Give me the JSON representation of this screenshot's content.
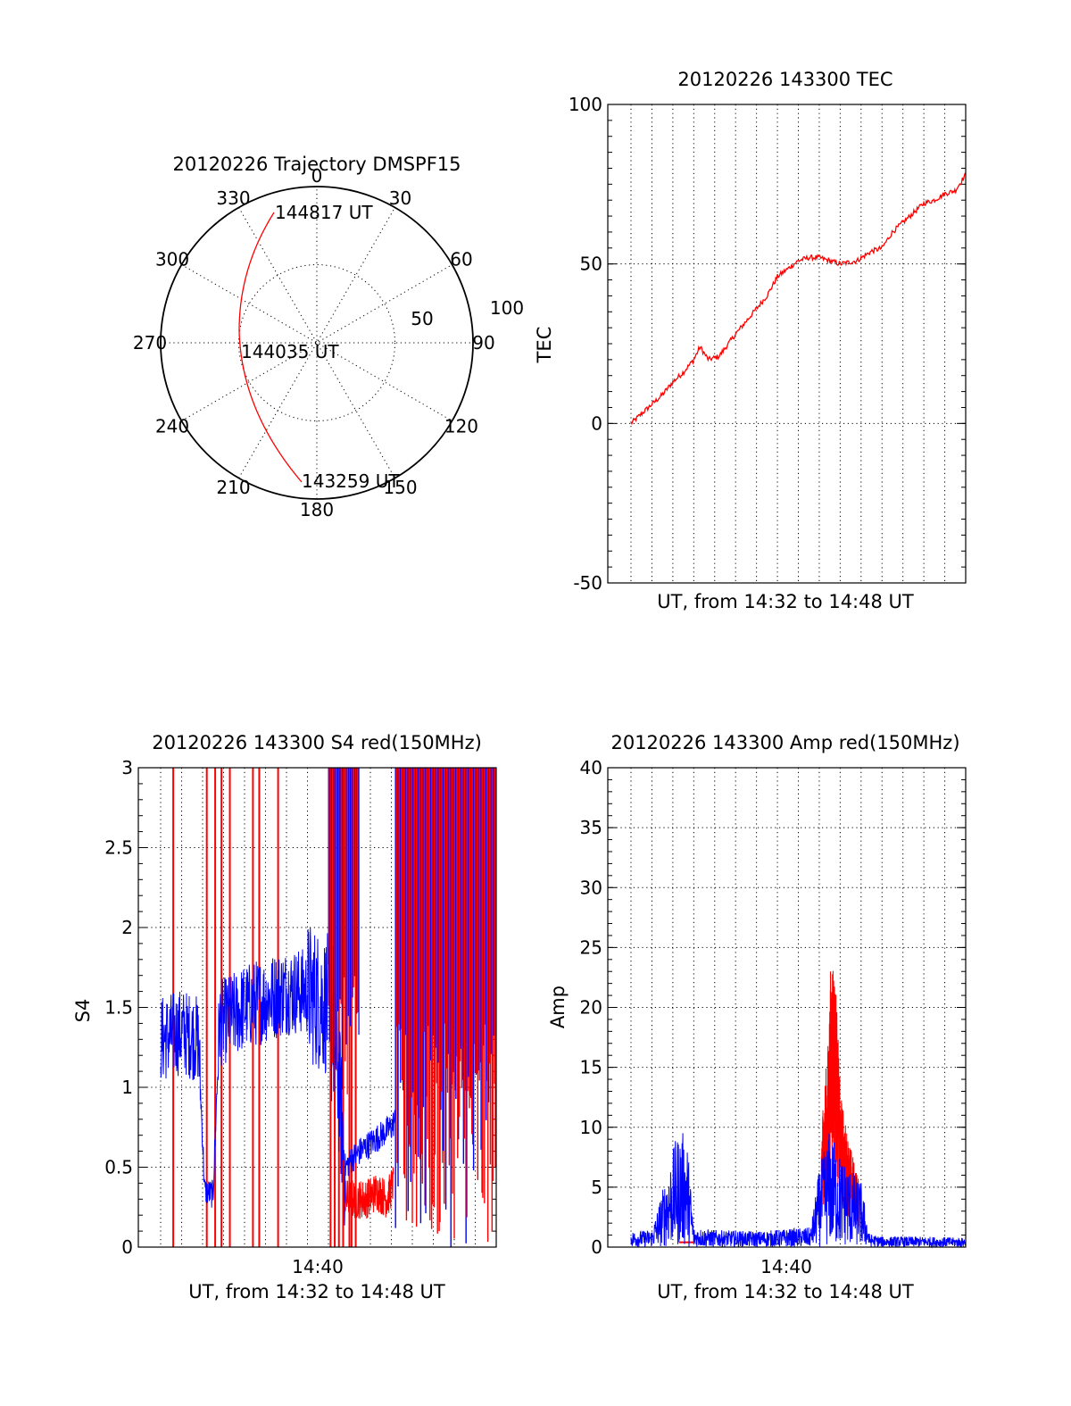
{
  "polar": {
    "title": "20120226 Trajectory DMSPF15",
    "azimuth_labels": [
      "0",
      "30",
      "60",
      "90",
      "120",
      "150",
      "180",
      "210",
      "240",
      "270",
      "300",
      "330"
    ],
    "ring_labels": [
      "50",
      "100"
    ],
    "r_max": 100,
    "annotations": [
      "144817 UT",
      "144035 UT",
      "143259 UT"
    ],
    "track_color": "#ff0000"
  },
  "chart_data": [
    {
      "type": "line",
      "title": "20120226 143300 TEC",
      "xlabel": "UT, from 14:32 to 14:48 UT",
      "ylabel": "TEC",
      "x_range_minutes": [
        0,
        16
      ],
      "ylim": [
        -50,
        100
      ],
      "yticks": [
        "100",
        "50",
        "0",
        "-50"
      ],
      "grid": true,
      "series": [
        {
          "color": "#ff0000",
          "x": [
            0,
            0.5,
            1,
            1.5,
            2,
            2.5,
            3,
            3.3,
            3.7,
            4.2,
            5,
            6,
            6.5,
            7,
            8,
            8.5,
            9,
            9.5,
            10,
            10.8,
            11.5,
            12,
            12.5,
            13,
            14,
            14.5,
            15,
            15.5,
            16
          ],
          "values": [
            0,
            3,
            6,
            9,
            13,
            16,
            20,
            24,
            20,
            21,
            28,
            36,
            40,
            46,
            51,
            52,
            52,
            51,
            50,
            51,
            54,
            55,
            60,
            63,
            69,
            70,
            72,
            73,
            78
          ]
        }
      ]
    },
    {
      "type": "line",
      "title": "20120226 143300 S4 red(150MHz)",
      "xlabel": "UT, from 14:32 to 14:48 UT",
      "ylabel": "S4",
      "xtick": "14:40",
      "x_range_minutes": [
        0,
        16
      ],
      "ylim": [
        0,
        3
      ],
      "yticks": [
        "3",
        "2.5",
        "2",
        "1.5",
        "1",
        "0.5",
        "0"
      ],
      "grid": true,
      "series": [
        {
          "color": "#0000ff",
          "x": [
            0,
            1,
            1.8,
            2.1,
            2.5,
            2.8,
            3.5,
            4,
            5,
            6,
            7,
            7.5,
            8.2,
            8.8,
            9.1,
            9.5,
            10,
            10.5,
            11,
            11.2
          ],
          "values": [
            1.3,
            1.35,
            1.3,
            0.35,
            0.33,
            1.4,
            1.45,
            1.5,
            1.55,
            1.6,
            1.6,
            1.55,
            1.5,
            0.5,
            0.55,
            0.6,
            0.65,
            0.7,
            0.75,
            0.8
          ]
        },
        {
          "color": "#ff0000",
          "x": [
            8.8,
            9.2,
            9.8,
            10.3,
            10.8,
            11.1
          ],
          "values": [
            0.3,
            0.3,
            0.3,
            0.35,
            0.3,
            0.4
          ]
        }
      ],
      "red_spike_minutes": [
        0.6,
        2.2,
        2.6,
        2.9,
        3.3,
        4.4,
        4.7,
        5.6,
        8.1,
        8.3,
        8.5,
        8.7,
        9.0,
        9.1,
        9.3
      ],
      "saturated_region_minutes": [
        11.2,
        16
      ]
    },
    {
      "type": "line",
      "title": "20120226 143300 Amp red(150MHz)",
      "xlabel": "UT, from 14:32 to 14:48 UT",
      "ylabel": "Amp",
      "xtick": "14:40",
      "x_range_minutes": [
        0,
        16
      ],
      "ylim": [
        0,
        40
      ],
      "yticks": [
        "40",
        "35",
        "30",
        "25",
        "20",
        "15",
        "10",
        "5",
        "0"
      ],
      "grid": true,
      "series": [
        {
          "color": "#ff0000",
          "x": [
            9.1,
            9.4,
            9.6,
            9.8,
            10.0,
            10.3,
            10.6,
            10.9
          ],
          "values": [
            10,
            15,
            24,
            20,
            12,
            9,
            7,
            5
          ]
        },
        {
          "color": "#0000ff",
          "x": [
            0,
            1,
            2.1,
            2.4,
            2.7,
            3.0,
            4,
            6,
            8.6,
            9.0,
            9.5,
            10,
            10.5,
            11,
            11.4,
            12,
            14,
            16
          ],
          "values": [
            1.2,
            1.3,
            8,
            9,
            8,
            1.5,
            1.3,
            1.2,
            1.5,
            6,
            9,
            7,
            6,
            5,
            1,
            0.8,
            0.8,
            0.7
          ]
        }
      ]
    }
  ]
}
